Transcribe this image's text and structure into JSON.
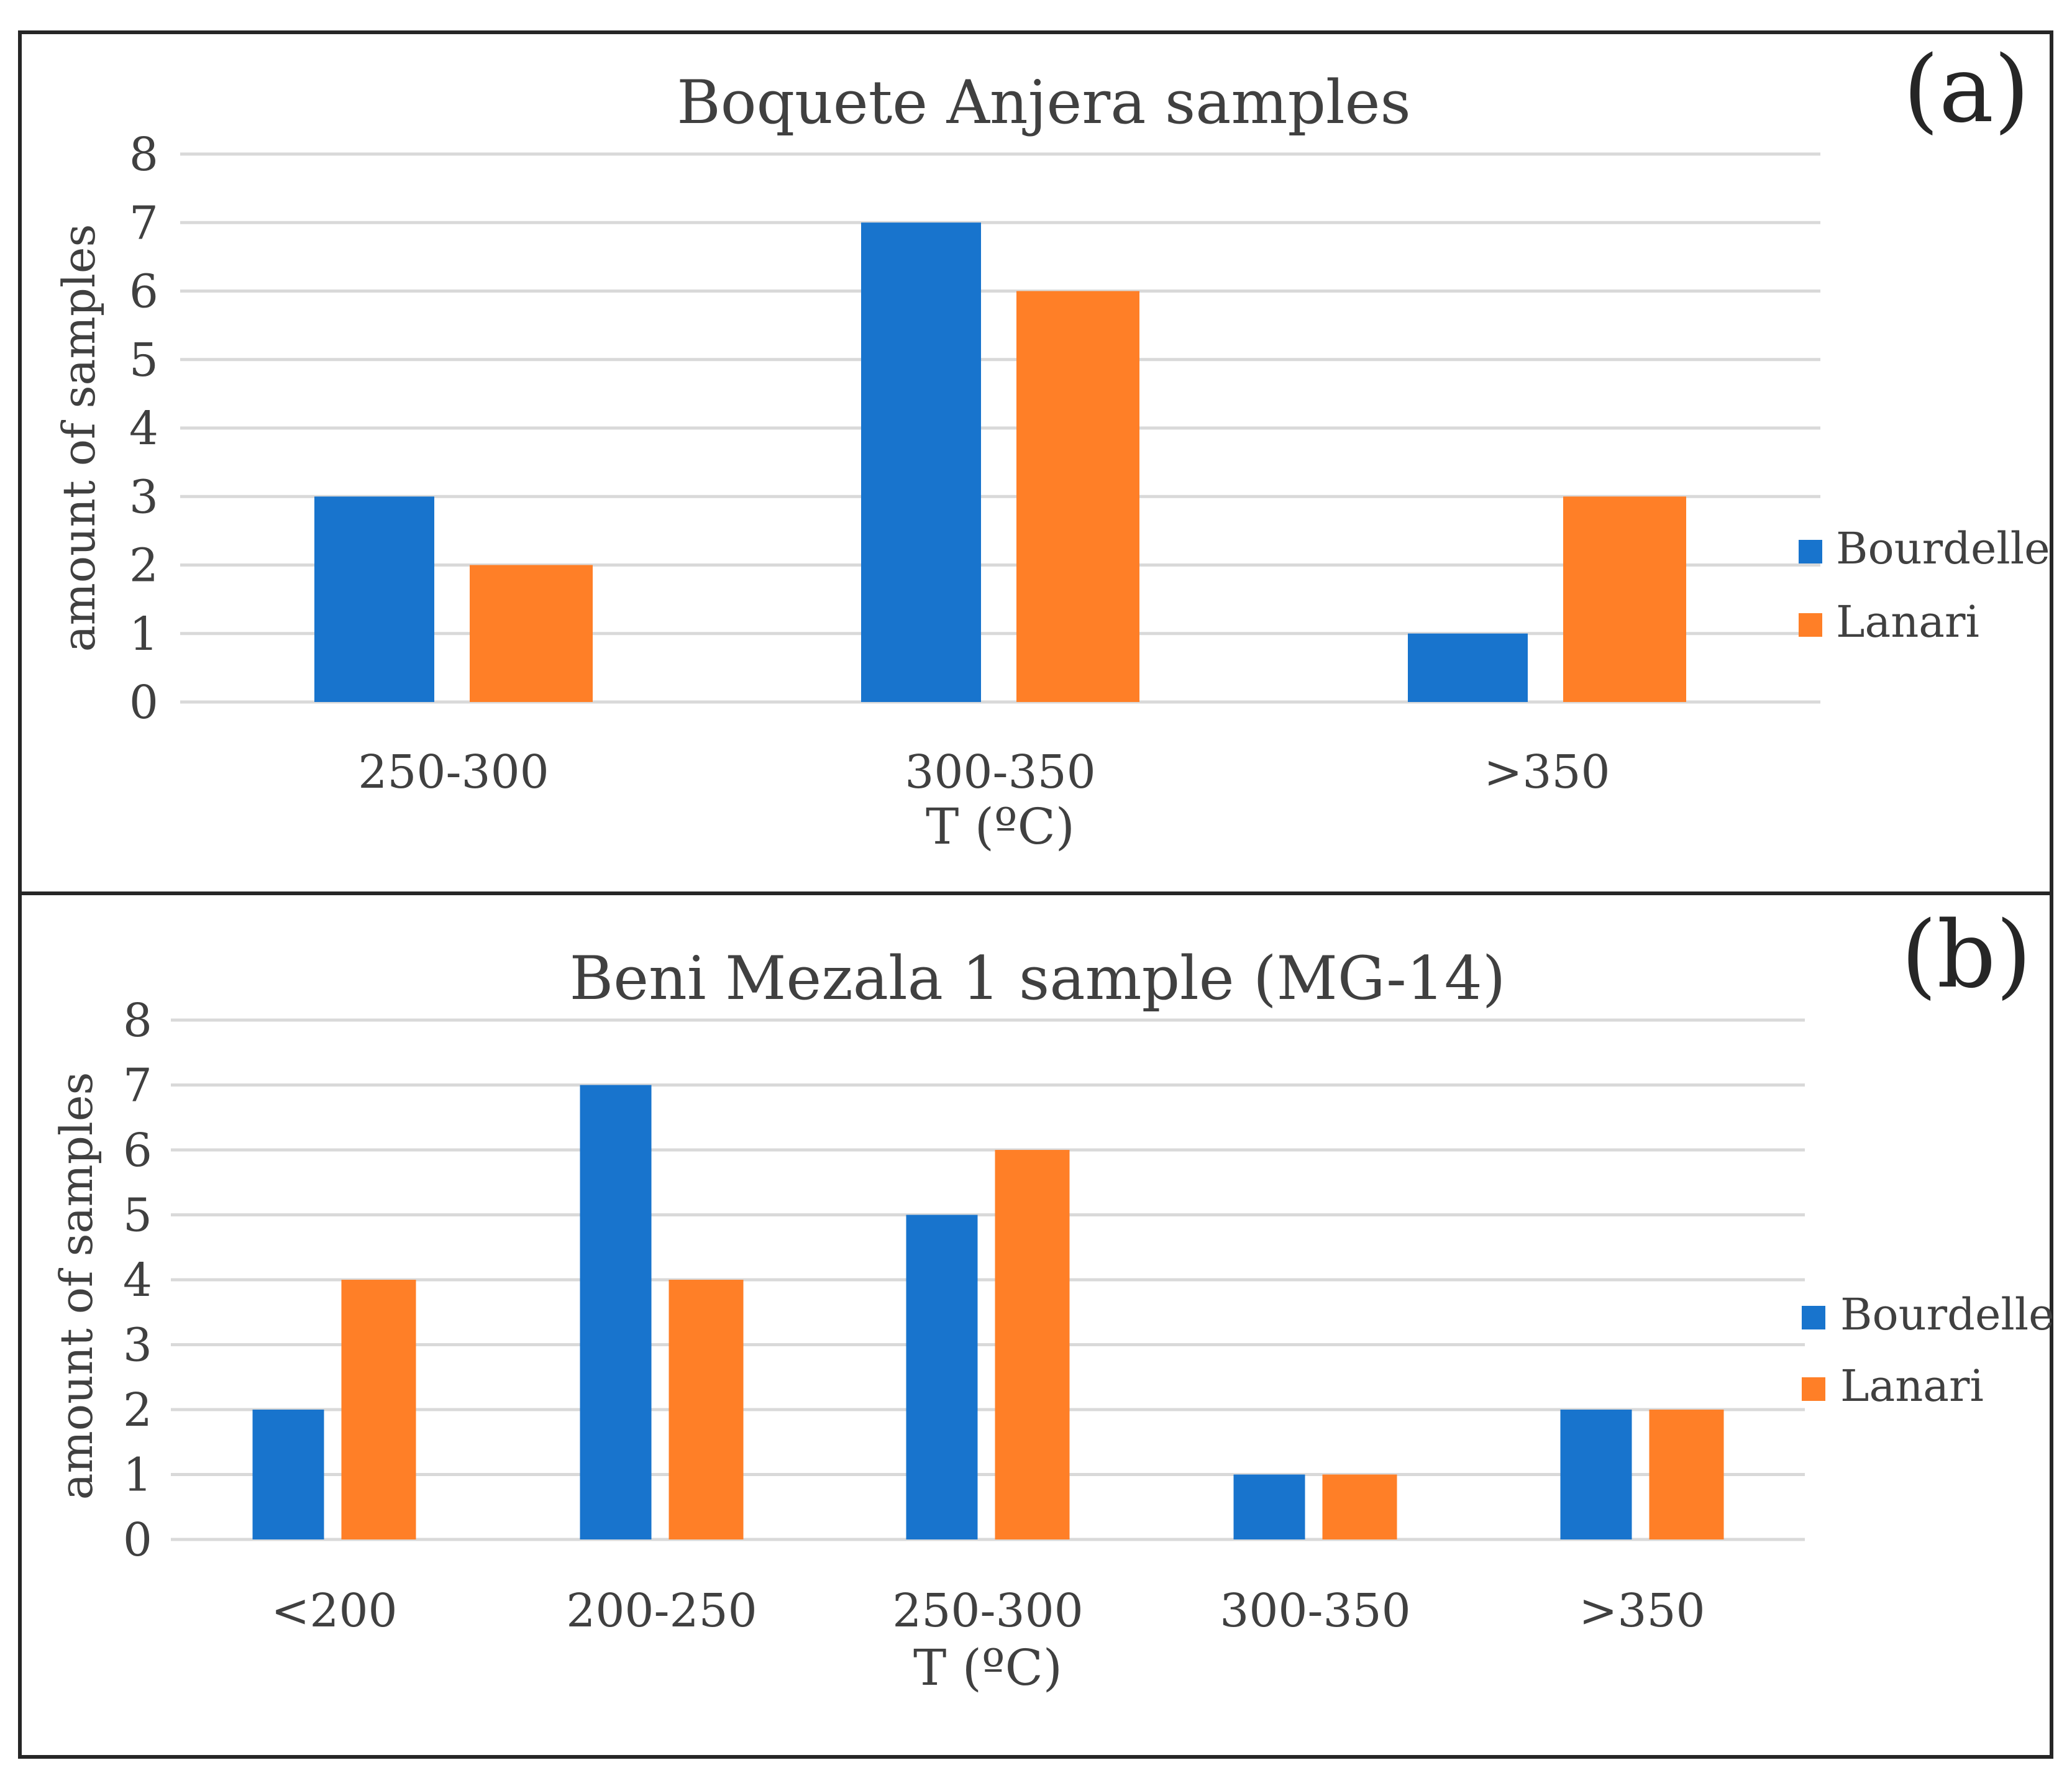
{
  "colors": {
    "bourdelle": "#1874CD",
    "lanari": "#FF7F27",
    "grid": "#D9D9D9",
    "frame": "#262626",
    "text": "#404040"
  },
  "chart_data": [
    {
      "type": "bar",
      "panel_label": "(a)",
      "title": "Boquete Anjera samples",
      "xlabel": "T (ºC)",
      "ylabel": "amount of samples",
      "ylim": [
        0,
        8
      ],
      "yticks": [
        "0",
        "1",
        "2",
        "3",
        "4",
        "5",
        "6",
        "7",
        "8"
      ],
      "categories": [
        "250-300",
        "300-350",
        ">350"
      ],
      "series": [
        {
          "name": "Bourdelle",
          "color": "#1874CD",
          "values": [
            3,
            7,
            1
          ]
        },
        {
          "name": "Lanari",
          "color": "#FF7F27",
          "values": [
            2,
            6,
            3
          ]
        }
      ],
      "grid": true,
      "legend": "right"
    },
    {
      "type": "bar",
      "panel_label": "(b)",
      "title": "Beni Mezala 1 sample (MG-14)",
      "xlabel": "T (ºC)",
      "ylabel": "amount of samples",
      "ylim": [
        0,
        8
      ],
      "yticks": [
        "0",
        "1",
        "2",
        "3",
        "4",
        "5",
        "6",
        "7",
        "8"
      ],
      "categories": [
        "<200",
        "200-250",
        "250-300",
        "300-350",
        ">350"
      ],
      "series": [
        {
          "name": "Bourdelle",
          "color": "#1874CD",
          "values": [
            2,
            7,
            5,
            1,
            2
          ]
        },
        {
          "name": "Lanari",
          "color": "#FF7F27",
          "values": [
            4,
            4,
            6,
            1,
            2
          ]
        }
      ],
      "grid": true,
      "legend": "right"
    }
  ]
}
